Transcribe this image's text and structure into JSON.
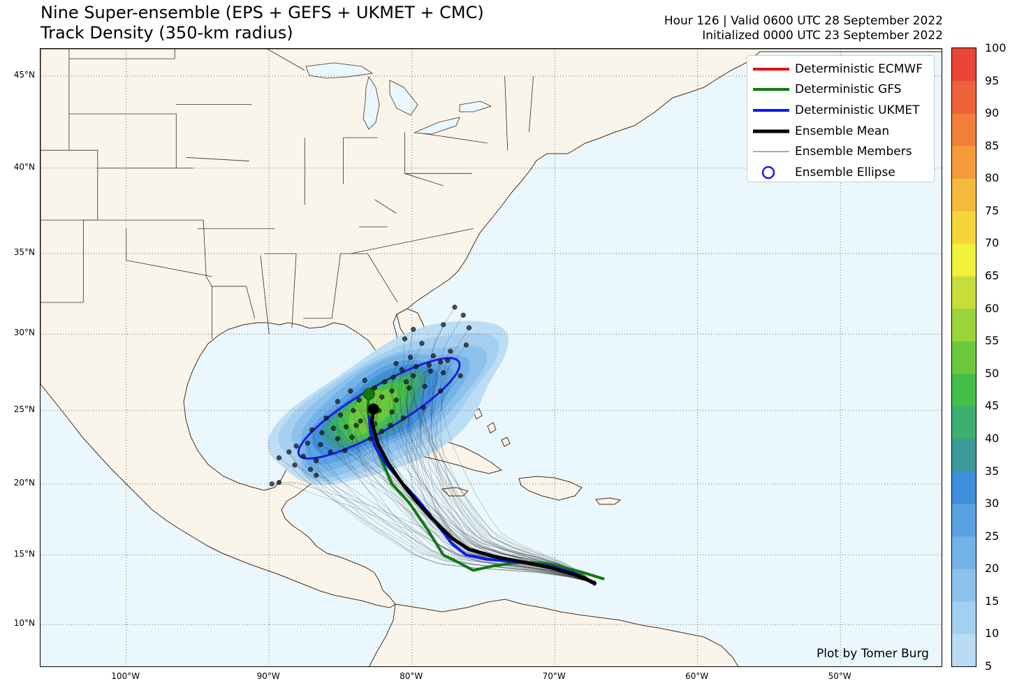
{
  "title": {
    "line1": "Nine Super-ensemble (EPS + GEFS + UKMET + CMC)",
    "line2": "Track Density (350-km radius)"
  },
  "info": {
    "valid": "Hour 126 | Valid 0600 UTC 28 September 2022",
    "init": "Initialized 0000 UTC 23 September 2022"
  },
  "legend": {
    "items": [
      {
        "label": "Deterministic ECMWF",
        "symbol": "line",
        "color": "#e8110f"
      },
      {
        "label": "Deterministic GFS",
        "symbol": "line",
        "color": "#107a10"
      },
      {
        "label": "Deterministic UKMET",
        "symbol": "line",
        "color": "#0b1bf0"
      },
      {
        "label": "Ensemble Mean",
        "symbol": "line",
        "color": "#000000"
      },
      {
        "label": "Ensemble Members",
        "symbol": "thin-line",
        "color": "#555555"
      },
      {
        "label": "Ensemble Ellipse",
        "symbol": "circle",
        "color": "#1d1de0"
      }
    ]
  },
  "credit": "Plot by Tomer Burg",
  "axes": {
    "lat_labels": [
      {
        "value": 45,
        "text": "45°N"
      },
      {
        "value": 40,
        "text": "40°N"
      },
      {
        "value": 35,
        "text": "35°N"
      },
      {
        "value": 30,
        "text": "30°N"
      },
      {
        "value": 25,
        "text": "25°N"
      },
      {
        "value": 20,
        "text": "20°N"
      },
      {
        "value": 15,
        "text": "15°N"
      },
      {
        "value": 10,
        "text": "10°N"
      }
    ],
    "lon_labels": [
      {
        "value": -100,
        "text": "100°W"
      },
      {
        "value": -90,
        "text": "90°W"
      },
      {
        "value": -80,
        "text": "80°W"
      },
      {
        "value": -70,
        "text": "70°W"
      },
      {
        "value": -60,
        "text": "60°W"
      },
      {
        "value": -50,
        "text": "50°W"
      }
    ]
  },
  "colorbar": {
    "ticks": [
      5,
      10,
      15,
      20,
      25,
      30,
      35,
      40,
      45,
      50,
      55,
      60,
      65,
      70,
      75,
      80,
      85,
      90,
      95,
      100
    ],
    "colors": [
      "#b9dcf4",
      "#a3cff0",
      "#8cc1ec",
      "#73b2e7",
      "#5aa2e2",
      "#3f8fdc",
      "#3a9a9a",
      "#3caf6f",
      "#44bf4a",
      "#6dc93c",
      "#9bd33a",
      "#c8dd39",
      "#f1f03a",
      "#f6d53a",
      "#f5b93b",
      "#f49b3a",
      "#f17f39",
      "#ee6239",
      "#eb4537",
      "#e8332f"
    ]
  },
  "tracks": {
    "gfs": [
      [
        -66.6,
        13.3
      ],
      [
        -68.2,
        13.8
      ],
      [
        -70.5,
        14.4
      ],
      [
        -72.3,
        14.5
      ],
      [
        -74.4,
        14.2
      ],
      [
        -75.7,
        13.9
      ],
      [
        -76.8,
        14.5
      ],
      [
        -77.8,
        15.0
      ],
      [
        -78.9,
        16.8
      ],
      [
        -80.2,
        18.7
      ],
      [
        -81.4,
        20.0
      ],
      [
        -82.2,
        21.8
      ],
      [
        -82.8,
        23.5
      ],
      [
        -83.1,
        25.0
      ],
      [
        -83.0,
        26.1
      ]
    ],
    "ukmet": [
      [
        -67.2,
        12.9
      ],
      [
        -68.6,
        13.7
      ],
      [
        -70.3,
        14.2
      ],
      [
        -72.6,
        14.5
      ],
      [
        -74.8,
        14.7
      ],
      [
        -76.2,
        15.0
      ],
      [
        -77.2,
        15.8
      ],
      [
        -78.4,
        17.4
      ],
      [
        -79.5,
        18.8
      ],
      [
        -80.8,
        20.2
      ],
      [
        -81.9,
        21.5
      ],
      [
        -82.6,
        22.6
      ],
      [
        -82.9,
        23.6
      ],
      [
        -83.0,
        24.6
      ]
    ],
    "mean": [
      [
        -67.2,
        13.0
      ],
      [
        -68.6,
        13.6
      ],
      [
        -70.3,
        14.1
      ],
      [
        -72.3,
        14.5
      ],
      [
        -74.3,
        14.9
      ],
      [
        -76.0,
        15.4
      ],
      [
        -77.2,
        16.2
      ],
      [
        -78.6,
        17.6
      ],
      [
        -79.7,
        18.8
      ],
      [
        -80.8,
        20.2
      ],
      [
        -81.7,
        21.5
      ],
      [
        -82.4,
        22.8
      ],
      [
        -82.8,
        24.2
      ],
      [
        -82.7,
        25.1
      ]
    ],
    "ecmwf_end": [
      -82.7,
      25.1
    ],
    "gfs_end": [
      -83.0,
      26.1
    ],
    "mean_end": [
      -82.7,
      25.1
    ]
  },
  "ellipse": {
    "center": [
      -82.3,
      25.1
    ],
    "semi_major_deg": 6.4,
    "semi_minor_deg": 1.45,
    "angle_deg": 29
  },
  "end_points": [
    [
      -77.0,
      31.7
    ],
    [
      -76.4,
      31.2
    ],
    [
      -76.0,
      30.4
    ],
    [
      -77.8,
      30.6
    ],
    [
      -79.9,
      30.3
    ],
    [
      -80.5,
      29.7
    ],
    [
      -76.2,
      29.3
    ],
    [
      -79.3,
      29.4
    ],
    [
      -77.3,
      28.9
    ],
    [
      -78.5,
      28.6
    ],
    [
      -78.0,
      28.2
    ],
    [
      -77.5,
      28.3
    ],
    [
      -78.8,
      28.0
    ],
    [
      -80.1,
      28.5
    ],
    [
      -81.1,
      28.1
    ],
    [
      -80.7,
      27.7
    ],
    [
      -79.7,
      27.9
    ],
    [
      -78.7,
      27.6
    ],
    [
      -77.8,
      27.5
    ],
    [
      -76.6,
      27.3
    ],
    [
      -79.9,
      27.3
    ],
    [
      -81.3,
      27.2
    ],
    [
      -80.4,
      26.9
    ],
    [
      -81.9,
      26.9
    ],
    [
      -83.3,
      27.0
    ],
    [
      -82.6,
      26.5
    ],
    [
      -81.4,
      26.3
    ],
    [
      -80.2,
      26.5
    ],
    [
      -79.1,
      26.6
    ],
    [
      -78.0,
      26.3
    ],
    [
      -82.1,
      25.9
    ],
    [
      -81.1,
      25.7
    ],
    [
      -83.7,
      25.7
    ],
    [
      -84.3,
      26.3
    ],
    [
      -85.2,
      25.6
    ],
    [
      -82.3,
      25.0
    ],
    [
      -81.4,
      24.9
    ],
    [
      -84.1,
      25.0
    ],
    [
      -85.0,
      24.7
    ],
    [
      -86.0,
      24.5
    ],
    [
      -83.6,
      24.3
    ],
    [
      -82.6,
      24.1
    ],
    [
      -81.5,
      24.0
    ],
    [
      -84.6,
      23.9
    ],
    [
      -85.5,
      23.8
    ],
    [
      -86.3,
      23.5
    ],
    [
      -87.0,
      23.7
    ],
    [
      -85.2,
      23.1
    ],
    [
      -84.2,
      23.2
    ],
    [
      -82.9,
      23.1
    ],
    [
      -86.4,
      22.7
    ],
    [
      -87.3,
      22.8
    ],
    [
      -88.1,
      22.6
    ],
    [
      -87.6,
      21.9
    ],
    [
      -86.7,
      21.6
    ],
    [
      -85.7,
      22.2
    ],
    [
      -84.7,
      22.3
    ],
    [
      -88.6,
      22.2
    ],
    [
      -89.3,
      21.8
    ],
    [
      -88.2,
      21.3
    ],
    [
      -86.7,
      20.6
    ],
    [
      -89.8,
      20.0
    ],
    [
      -89.3,
      20.1
    ],
    [
      -87.1,
      21.0
    ],
    [
      -83.9,
      24.0
    ],
    [
      -82.1,
      23.6
    ],
    [
      -80.6,
      24.5
    ],
    [
      -79.2,
      25.2
    ]
  ]
}
